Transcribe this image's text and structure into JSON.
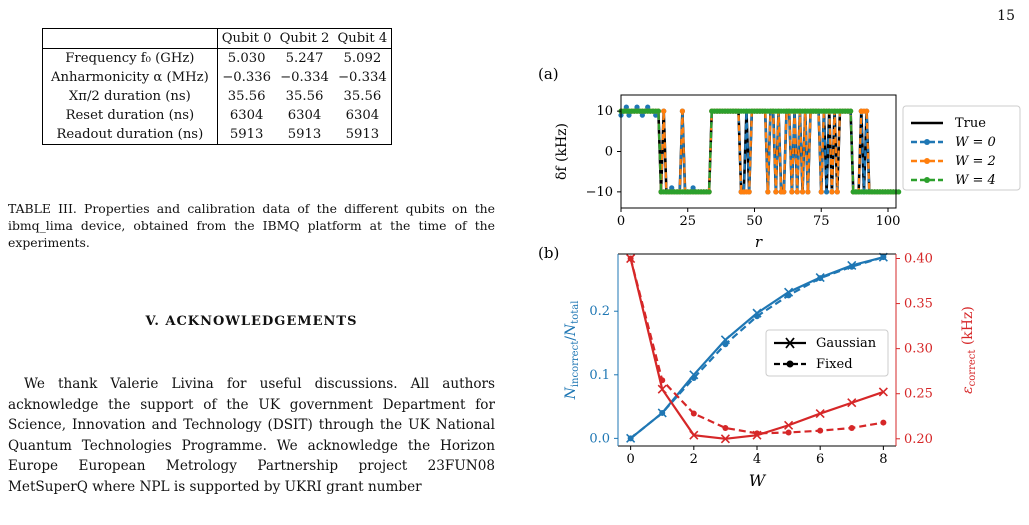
{
  "page_number": "15",
  "table": {
    "headers": [
      "",
      "Qubit 0",
      "Qubit 2",
      "Qubit 4"
    ],
    "rows": [
      {
        "label": "Frequency f₀ (GHz)",
        "values": [
          "5.030",
          "5.247",
          "5.092"
        ]
      },
      {
        "label": "Anharmonicity α (MHz)",
        "values": [
          "−0.336",
          "−0.334",
          "−0.334"
        ]
      },
      {
        "label": "Xπ/2 duration (ns)",
        "values": [
          "35.56",
          "35.56",
          "35.56"
        ]
      },
      {
        "label": "Reset duration (ns)",
        "values": [
          "6304",
          "6304",
          "6304"
        ]
      },
      {
        "label": "Readout duration (ns)",
        "values": [
          "5913",
          "5913",
          "5913"
        ]
      }
    ]
  },
  "caption": "TABLE III. Properties and calibration data of the different qubits on the ibmq_lima device, obtained from the IBMQ platform at the time of the experiments.",
  "section_title": "V.   ACKNOWLEDGEMENTS",
  "body_text": "We thank Valerie Livina for useful discussions. All authors acknowledge the support of the UK government Department for Science, Innovation and Technology (DSIT) through the UK National Quantum Technologies Programme. We acknowledge the Horizon Europe European Metrology Partnership project 23FUN08 MetSuperQ where NPL is supported by UKRI grant number",
  "chart_data": [
    {
      "panel": "(a)",
      "type": "line",
      "xlabel": "r",
      "ylabel": "δf (kHz)",
      "xlim": [
        0,
        103
      ],
      "ylim": [
        -14,
        14
      ],
      "xticks": [
        0,
        25,
        50,
        75,
        100
      ],
      "yticks": [
        -10,
        0,
        10
      ],
      "legend": [
        "True",
        "W = 0",
        "W = 2",
        "W = 4"
      ],
      "legend_placement": "right, outside",
      "grid": false,
      "series": [
        {
          "name": "True",
          "color": "#000000",
          "dashed": false,
          "values": [
            10,
            10,
            10,
            10,
            10,
            10,
            10,
            10,
            10,
            10,
            10,
            10,
            10,
            10,
            10,
            -10,
            10,
            -10,
            -10,
            -10,
            -10,
            -10,
            -10,
            10,
            -10,
            -10,
            -10,
            -10,
            -10,
            -10,
            -10,
            -10,
            -10,
            -10,
            10,
            10,
            10,
            10,
            10,
            10,
            10,
            10,
            10,
            10,
            10,
            -10,
            -10,
            10,
            -10,
            10,
            10,
            10,
            10,
            10,
            10,
            -10,
            10,
            10,
            -10,
            10,
            -10,
            -10,
            10,
            10,
            -10,
            10,
            -10,
            10,
            -10,
            10,
            -10,
            10,
            10,
            10,
            10,
            -10,
            10,
            -10,
            10,
            -10,
            10,
            -10,
            10,
            10,
            10,
            10,
            10,
            -10,
            -10,
            -10,
            10,
            -10,
            10,
            -10,
            -10,
            -10,
            -10,
            -10,
            -10,
            -10,
            -10,
            -10,
            -10,
            -10
          ]
        },
        {
          "name": "W = 0",
          "color": "#1f77b4",
          "dashed": true,
          "values": [
            9,
            10,
            11,
            9,
            10,
            10,
            11,
            10,
            9,
            10,
            11,
            10,
            10,
            9,
            10,
            -10,
            10,
            -10,
            -10,
            -9,
            -10,
            -10,
            -10,
            10,
            -10,
            -10,
            -10,
            -9,
            -10,
            -10,
            -10,
            -10,
            -10,
            -10,
            10,
            10,
            10,
            10,
            10,
            10,
            10,
            10,
            10,
            10,
            10,
            -10,
            -10,
            10,
            -10,
            10,
            10,
            10,
            10,
            10,
            10,
            -10,
            10,
            10,
            -10,
            10,
            -10,
            -10,
            10,
            10,
            -10,
            10,
            -10,
            10,
            -10,
            10,
            -10,
            10,
            10,
            10,
            10,
            -10,
            10,
            -10,
            10,
            -10,
            10,
            -10,
            10,
            10,
            10,
            10,
            10,
            -10,
            -10,
            -10,
            10,
            -10,
            10,
            -10,
            -10,
            -10,
            -10,
            -10,
            -10,
            -10,
            -10,
            -10,
            -10,
            -10
          ]
        },
        {
          "name": "W = 2",
          "color": "#ff7f0e",
          "dashed": true,
          "values": [
            10,
            10,
            10,
            10,
            10,
            10,
            10,
            10,
            10,
            10,
            10,
            10,
            10,
            10,
            10,
            -10,
            10,
            -10,
            -10,
            -10,
            -10,
            -10,
            -10,
            10,
            -10,
            -10,
            -10,
            -10,
            -10,
            -10,
            -10,
            -10,
            -10,
            -10,
            10,
            10,
            10,
            10,
            10,
            10,
            10,
            10,
            10,
            10,
            10,
            -10,
            -10,
            -10,
            -10,
            10,
            10,
            10,
            10,
            10,
            10,
            -10,
            10,
            10,
            -10,
            10,
            -10,
            -10,
            10,
            10,
            -10,
            10,
            -10,
            10,
            -10,
            10,
            -10,
            10,
            10,
            10,
            10,
            -10,
            10,
            10,
            10,
            -10,
            10,
            -10,
            10,
            10,
            10,
            10,
            10,
            -10,
            -10,
            -10,
            10,
            10,
            10,
            -10,
            -10,
            -10,
            -10,
            -10,
            -10,
            -10,
            -10,
            -10,
            -10,
            -10
          ]
        },
        {
          "name": "W = 4",
          "color": "#2ca02c",
          "dashed": true,
          "values": [
            10,
            10,
            10,
            10,
            10,
            10,
            10,
            10,
            10,
            10,
            10,
            10,
            10,
            10,
            10,
            -10,
            -10,
            -10,
            -10,
            -10,
            -10,
            -10,
            -10,
            -10,
            -10,
            -10,
            -10,
            -10,
            -10,
            -10,
            -10,
            -10,
            -10,
            -10,
            10,
            10,
            10,
            10,
            10,
            10,
            10,
            10,
            10,
            10,
            10,
            10,
            10,
            10,
            10,
            10,
            10,
            10,
            10,
            10,
            10,
            10,
            10,
            10,
            10,
            10,
            10,
            10,
            10,
            10,
            10,
            10,
            10,
            10,
            10,
            10,
            10,
            10,
            10,
            10,
            10,
            10,
            10,
            10,
            10,
            10,
            10,
            10,
            10,
            10,
            10,
            10,
            10,
            -10,
            -10,
            -10,
            -10,
            -10,
            -10,
            -10,
            -10,
            -10,
            -10,
            -10,
            -10,
            -10,
            -10,
            -10,
            -10,
            -10,
            -10
          ]
        }
      ]
    },
    {
      "panel": "(b)",
      "type": "line",
      "xlabel": "W",
      "ylabel": "N_incorrect/N_total",
      "ylabel_right": "ε_correct (kHz)",
      "x": [
        0,
        1,
        2,
        3,
        4,
        5,
        6,
        7,
        8
      ],
      "xlim": [
        -0.4,
        8.4
      ],
      "ylim": [
        -0.012,
        0.29
      ],
      "ylim_right": [
        0.192,
        0.405
      ],
      "xticks": [
        0,
        2,
        4,
        6,
        8
      ],
      "yticks": [
        0.0,
        0.1,
        0.2
      ],
      "yticks_right": [
        0.2,
        0.25,
        0.3,
        0.35,
        0.4
      ],
      "legend": [
        "Gaussian",
        "Fixed"
      ],
      "legend_placement": "center-right",
      "grid": false,
      "series": [
        {
          "name": "Gaussian",
          "axis": "left",
          "color": "#1f77b4",
          "dashed": false,
          "marker": "x",
          "values": [
            0.0,
            0.04,
            0.1,
            0.155,
            0.197,
            0.23,
            0.253,
            0.272,
            0.285
          ]
        },
        {
          "name": "Fixed",
          "axis": "left",
          "color": "#1f77b4",
          "dashed": true,
          "marker": "dot",
          "values": [
            0.0,
            0.04,
            0.095,
            0.148,
            0.192,
            0.225,
            0.252,
            0.27,
            0.285
          ]
        },
        {
          "name": "Gaussian",
          "axis": "right",
          "color": "#d62728",
          "dashed": false,
          "marker": "x",
          "values": [
            0.4,
            0.255,
            0.204,
            0.2,
            0.204,
            0.215,
            0.228,
            0.24,
            0.252
          ]
        },
        {
          "name": "Fixed",
          "axis": "right",
          "color": "#d62728",
          "dashed": true,
          "marker": "dot",
          "values": [
            0.4,
            0.265,
            0.228,
            0.212,
            0.206,
            0.207,
            0.209,
            0.212,
            0.218
          ]
        }
      ]
    }
  ]
}
